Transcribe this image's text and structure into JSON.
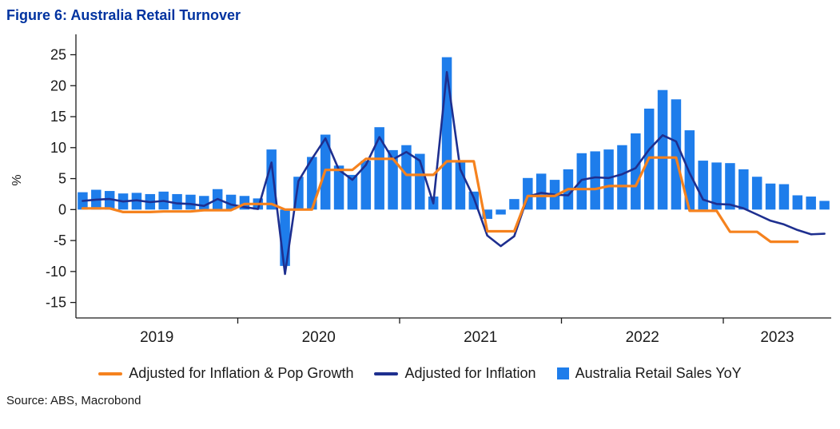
{
  "title": "Figure 6: Australia Retail Turnover",
  "source": "Source: ABS, Macrobond",
  "colors": {
    "title": "#0033A0",
    "bar_blue": "#1E7DEB",
    "navy_line": "#1E2F8F",
    "orange_line": "#F5821E",
    "axis_text": "#1A1A1A"
  },
  "legend": [
    {
      "label": "Adjusted for Inflation & Pop Growth",
      "marker": "line",
      "color": "#F5821E"
    },
    {
      "label": "Adjusted for Inflation",
      "marker": "line",
      "color": "#1E2F8F"
    },
    {
      "label": "Australia Retail Sales YoY",
      "marker": "square",
      "color": "#1E7DEB"
    }
  ],
  "chart_data": {
    "type": "bar",
    "title": "Figure 6: Australia Retail Turnover",
    "xlabel": "",
    "ylabel": "%",
    "ylim": [
      -17.5,
      27
    ],
    "y_ticks": [
      25,
      20,
      15,
      10,
      5,
      0,
      -5,
      -10,
      -15
    ],
    "x_tick_labels": [
      "2019",
      "2020",
      "2021",
      "2022",
      "2023"
    ],
    "grid": false,
    "legend_position": "bottom",
    "months": [
      "2019-01",
      "2019-02",
      "2019-03",
      "2019-04",
      "2019-05",
      "2019-06",
      "2019-07",
      "2019-08",
      "2019-09",
      "2019-10",
      "2019-11",
      "2019-12",
      "2020-01",
      "2020-02",
      "2020-03",
      "2020-04",
      "2020-05",
      "2020-06",
      "2020-07",
      "2020-08",
      "2020-09",
      "2020-10",
      "2020-11",
      "2020-12",
      "2021-01",
      "2021-02",
      "2021-03",
      "2021-04",
      "2021-05",
      "2021-06",
      "2021-07",
      "2021-08",
      "2021-09",
      "2021-10",
      "2021-11",
      "2021-12",
      "2022-01",
      "2022-02",
      "2022-03",
      "2022-04",
      "2022-05",
      "2022-06",
      "2022-07",
      "2022-08",
      "2022-09",
      "2022-10",
      "2022-11",
      "2022-12",
      "2023-01",
      "2023-02",
      "2023-03",
      "2023-04",
      "2023-05",
      "2023-06",
      "2023-07",
      "2023-08"
    ],
    "series": [
      {
        "name": "Australia Retail Sales YoY",
        "type": "bar",
        "color": "#1E7DEB",
        "values": [
          2.8,
          3.2,
          3.0,
          2.6,
          2.7,
          2.5,
          2.9,
          2.5,
          2.4,
          2.2,
          3.3,
          2.4,
          2.2,
          1.8,
          9.7,
          -9.1,
          5.3,
          8.5,
          12.1,
          7.1,
          5.6,
          7.9,
          13.3,
          9.6,
          10.4,
          9.0,
          2.1,
          24.6,
          7.9,
          2.9,
          -1.5,
          -0.8,
          1.7,
          5.1,
          5.8,
          4.8,
          6.5,
          9.1,
          9.4,
          9.7,
          10.4,
          12.3,
          16.3,
          19.3,
          17.8,
          12.8,
          7.9,
          7.6,
          7.5,
          6.5,
          5.3,
          4.2,
          4.1,
          2.3,
          2.1,
          1.4
        ]
      },
      {
        "name": "Adjusted for Inflation",
        "type": "line",
        "color": "#1E2F8F",
        "values": [
          1.4,
          1.6,
          1.7,
          1.3,
          1.5,
          1.2,
          1.4,
          1.0,
          0.9,
          0.6,
          1.7,
          0.8,
          0.4,
          0.1,
          7.6,
          -10.4,
          4.6,
          8.2,
          11.5,
          6.4,
          4.8,
          7.2,
          11.7,
          8.1,
          9.3,
          7.9,
          1.0,
          22.2,
          6.5,
          1.9,
          -4.2,
          -5.9,
          -4.3,
          2.1,
          2.7,
          2.4,
          2.3,
          4.8,
          5.2,
          5.1,
          5.7,
          6.7,
          9.7,
          12.0,
          11.0,
          5.9,
          1.6,
          0.9,
          0.8,
          0.2,
          -0.8,
          -1.8,
          -2.4,
          -3.3,
          -4.0,
          -3.9
        ]
      },
      {
        "name": "Adjusted for Inflation & Pop Growth",
        "type": "line",
        "color": "#F5821E",
        "values": [
          0.2,
          0.2,
          0.2,
          -0.4,
          -0.4,
          -0.4,
          -0.3,
          -0.3,
          -0.3,
          -0.1,
          -0.1,
          -0.1,
          0.9,
          0.9,
          0.9,
          0.0,
          0.0,
          0.0,
          6.4,
          6.4,
          6.4,
          8.2,
          8.2,
          8.2,
          5.6,
          5.6,
          5.6,
          7.8,
          7.8,
          7.8,
          -3.5,
          -3.5,
          -3.5,
          2.2,
          2.2,
          2.2,
          3.3,
          3.3,
          3.3,
          3.8,
          3.8,
          3.8,
          8.4,
          8.4,
          8.4,
          -0.2,
          -0.2,
          -0.2,
          -3.6,
          -3.6,
          -3.6,
          -5.2,
          -5.2,
          -5.2,
          null,
          null
        ]
      }
    ]
  }
}
